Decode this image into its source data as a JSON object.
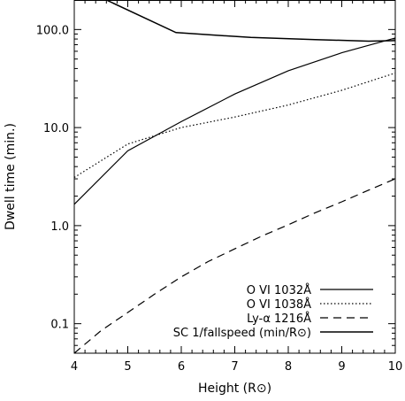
{
  "chart_data": {
    "type": "line",
    "title": "",
    "xlabel": "Height (R⊙)",
    "ylabel": "Dwell time (min.)",
    "xlim": [
      4,
      10
    ],
    "ylim": [
      0.05,
      200
    ],
    "yscale": "log",
    "grid": false,
    "legend_position": "bottom-right",
    "x_ticks": [
      "4",
      "5",
      "6",
      "7",
      "8",
      "9",
      "10"
    ],
    "y_ticks": [
      "0.1",
      "1.0",
      "10.0",
      "100.0"
    ],
    "series": [
      {
        "name": "O VI 1032Å",
        "style": "solid",
        "x": [
          4.0,
          5.0,
          6.0,
          7.0,
          8.0,
          9.0,
          10.0
        ],
        "y": [
          1.65,
          5.8,
          11.5,
          22.0,
          38.0,
          58.0,
          82.0
        ]
      },
      {
        "name": "O VI 1038Å",
        "style": "dotted",
        "x": [
          4.0,
          5.0,
          6.0,
          7.0,
          8.0,
          9.0,
          10.0
        ],
        "y": [
          3.1,
          6.8,
          10.0,
          12.8,
          17.0,
          24.0,
          36.0
        ]
      },
      {
        "name": "Ly-α 1216Å",
        "style": "dashed",
        "x": [
          4.0,
          4.5,
          5.0,
          5.5,
          6.0,
          6.5,
          7.0,
          7.5,
          8.0,
          8.5,
          9.0,
          9.5,
          10.0
        ],
        "y": [
          0.046,
          0.085,
          0.13,
          0.2,
          0.3,
          0.43,
          0.58,
          0.78,
          1.02,
          1.35,
          1.75,
          2.3,
          3.0
        ]
      },
      {
        "name": "SC 1/fallspeed (min/R⊙)",
        "style": "solid-thick",
        "x": [
          4.6,
          5.9,
          7.3,
          8.5,
          9.5,
          10.0
        ],
        "y": [
          200,
          93,
          83,
          79,
          76,
          77
        ]
      }
    ]
  }
}
